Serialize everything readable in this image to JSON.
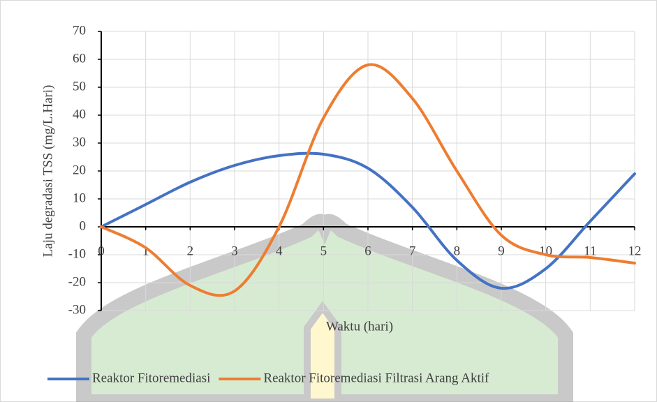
{
  "chart_data": {
    "type": "line",
    "x_label": "Waktu (hari)",
    "y_label": "Laju degradasi TSS (mg/L.Hari)",
    "x": [
      0,
      1,
      2,
      3,
      4,
      5,
      6,
      7,
      8,
      9,
      10,
      11,
      12
    ],
    "series": [
      {
        "name": "Reaktor Fitoremediasi",
        "color": "#4472c4",
        "values": [
          0,
          8,
          16,
          22,
          25.5,
          26,
          21,
          7,
          -12,
          -22,
          -15,
          2,
          19
        ]
      },
      {
        "name": "Reaktor Fitoremediasi Filtrasi Arang Aktif",
        "color": "#ed7d31",
        "values": [
          0,
          -7.5,
          -21,
          -23,
          0,
          39,
          58,
          46,
          20,
          -3,
          -10,
          -11,
          -13
        ]
      }
    ],
    "xlim": [
      0,
      12
    ],
    "xticks": [
      0,
      1,
      2,
      3,
      4,
      5,
      6,
      7,
      8,
      9,
      10,
      11,
      12
    ],
    "ylim": [
      -30,
      70
    ],
    "yticks": [
      -30,
      -20,
      -10,
      0,
      10,
      20,
      30,
      40,
      50,
      60,
      70
    ],
    "grid": true,
    "legend": "bottom",
    "smooth": true
  }
}
